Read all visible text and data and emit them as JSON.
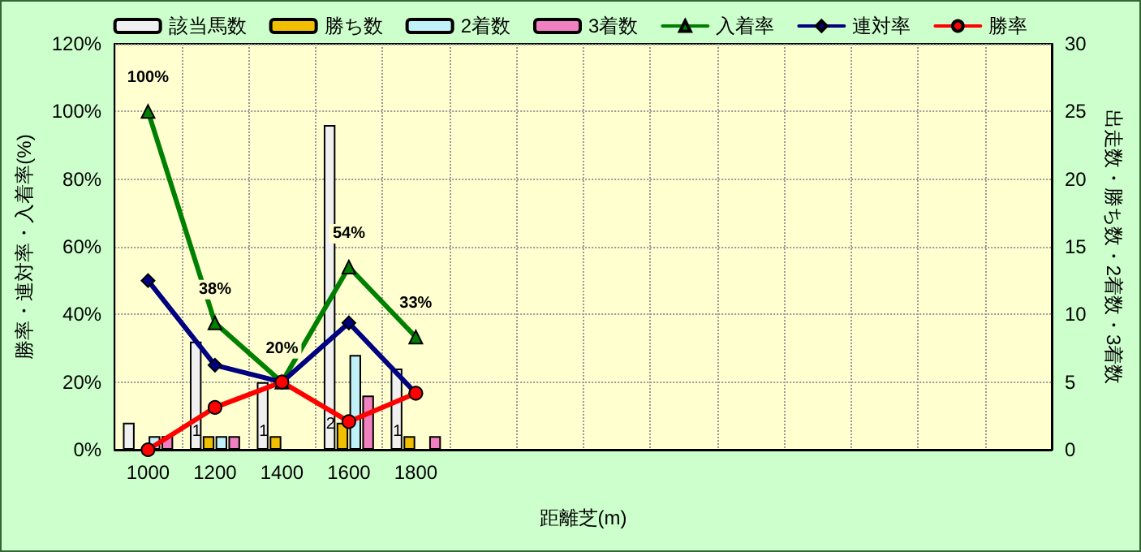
{
  "chart_data": {
    "type": "bar",
    "xlabel": "距離芝(m)",
    "ylabel": "勝率・連対率・入着率(%)",
    "y2label": "出走数・勝ち数・2着数・3着数",
    "categories": [
      "1000",
      "1200",
      "1400",
      "1600",
      "1800",
      null,
      null,
      null,
      null,
      null,
      null,
      null,
      null,
      null
    ],
    "series": [
      {
        "name": "該当馬数",
        "axis": "y2",
        "color": "#f0f0f0",
        "values": [
          2,
          8,
          5,
          24,
          6,
          null,
          null,
          null,
          null,
          null,
          null,
          null,
          null,
          null
        ]
      },
      {
        "name": "勝ち数",
        "axis": "y2",
        "color": "#f0c000",
        "values": [
          0,
          1,
          1,
          2,
          1,
          null,
          null,
          null,
          null,
          null,
          null,
          null,
          null,
          null
        ],
        "value_labels": [
          null,
          "1",
          "1",
          "2",
          "1",
          null,
          null,
          null,
          null,
          null,
          null,
          null,
          null,
          null
        ]
      },
      {
        "name": "2着数",
        "axis": "y2",
        "color": "#c0f0f8",
        "values": [
          1,
          1,
          0,
          7,
          0,
          null,
          null,
          null,
          null,
          null,
          null,
          null,
          null,
          null
        ]
      },
      {
        "name": "3着数",
        "axis": "y2",
        "color": "#f080c0",
        "values": [
          1,
          1,
          0,
          4,
          1,
          null,
          null,
          null,
          null,
          null,
          null,
          null,
          null,
          null
        ]
      },
      {
        "name": "入着率",
        "type": "line",
        "marker": "triangle",
        "color": "#008000",
        "values": [
          100,
          37.5,
          20,
          54,
          33.3,
          null,
          null,
          null,
          null,
          null,
          null,
          null,
          null,
          null
        ],
        "value_labels": [
          "100%",
          "38%",
          "20%",
          "54%",
          "33%",
          null,
          null,
          null,
          null,
          null,
          null,
          null,
          null,
          null
        ]
      },
      {
        "name": "連対率",
        "type": "line",
        "marker": "diamond",
        "color": "#000080",
        "values": [
          50,
          25,
          20,
          37.5,
          16.7,
          null,
          null,
          null,
          null,
          null,
          null,
          null,
          null,
          null
        ]
      },
      {
        "name": "勝率",
        "type": "line",
        "marker": "circle",
        "color": "#ff0000",
        "values": [
          0,
          12.5,
          20,
          8.3,
          16.7,
          null,
          null,
          null,
          null,
          null,
          null,
          null,
          null,
          null
        ]
      }
    ],
    "ylim": [
      0,
      120
    ],
    "yticks": [
      {
        "value": 0,
        "label": "0%"
      },
      {
        "value": 20,
        "label": "20%"
      },
      {
        "value": 40,
        "label": "40%"
      },
      {
        "value": 60,
        "label": "60%"
      },
      {
        "value": 80,
        "label": "80%"
      },
      {
        "value": 100,
        "label": "100%"
      },
      {
        "value": 120,
        "label": "120%"
      }
    ],
    "y2lim": [
      0,
      30
    ],
    "y2ticks": [
      0,
      5,
      10,
      15,
      20,
      25,
      30
    ],
    "grid": true,
    "legend": "top",
    "line_style": "solid"
  }
}
